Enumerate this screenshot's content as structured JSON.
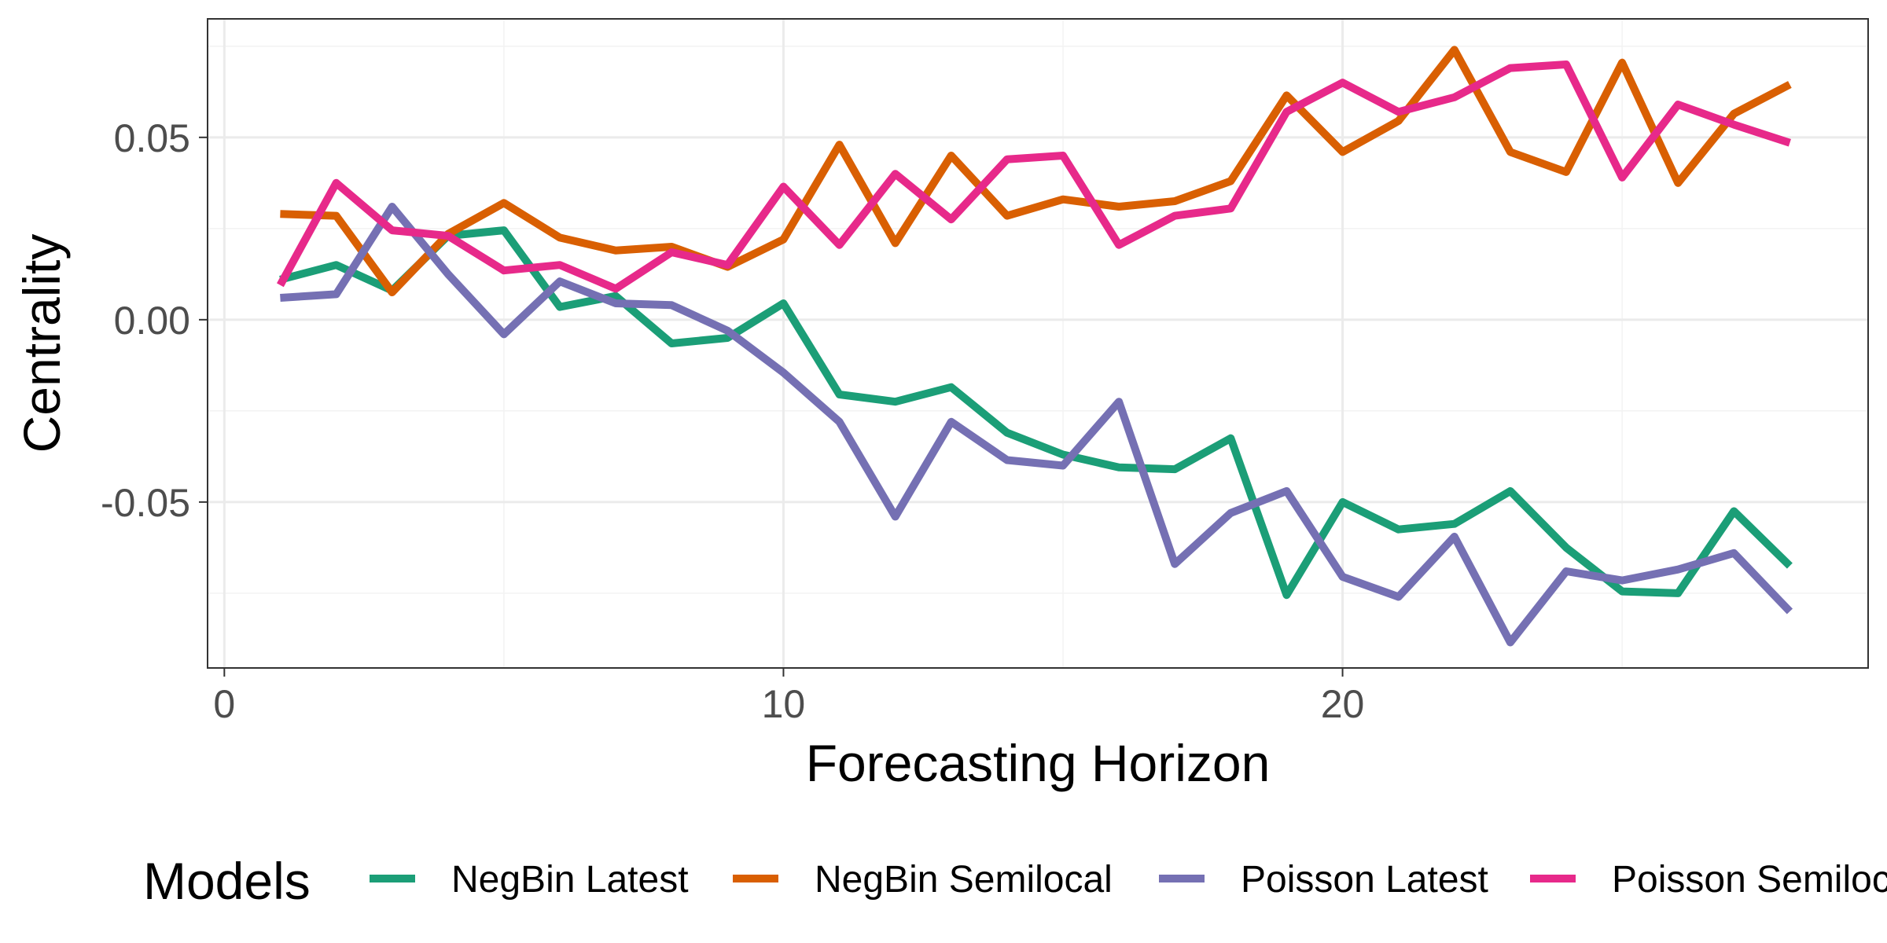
{
  "chart_data": {
    "type": "line",
    "title": "",
    "xlabel": "Forecasting Horizon",
    "ylabel": "Centrality",
    "xlim": [
      -0.3,
      29.4
    ],
    "ylim": [
      -0.0955,
      0.0825
    ],
    "x_ticks": [
      0,
      10,
      20
    ],
    "x_tick_labels": [
      "0",
      "10",
      "20"
    ],
    "y_ticks": [
      -0.05,
      0.0,
      0.05
    ],
    "y_tick_labels": [
      "-0.05",
      "0.00",
      "0.05"
    ],
    "grid": true,
    "legend": {
      "title": "Models",
      "placement": "bottom"
    },
    "x": [
      1,
      2,
      3,
      4,
      5,
      6,
      7,
      8,
      9,
      10,
      11,
      12,
      13,
      14,
      15,
      16,
      17,
      18,
      19,
      20,
      21,
      22,
      23,
      24,
      25,
      26,
      27,
      28
    ],
    "series": [
      {
        "name": "NegBin Latest",
        "color": "#1b9e77",
        "values": [
          0.011,
          0.015,
          0.008,
          0.023,
          0.0245,
          0.0035,
          0.0065,
          -0.0065,
          -0.005,
          0.0045,
          -0.0205,
          -0.0225,
          -0.0185,
          -0.031,
          -0.037,
          -0.0405,
          -0.041,
          -0.0325,
          -0.0755,
          -0.05,
          -0.0575,
          -0.056,
          -0.047,
          -0.0625,
          -0.0745,
          -0.075,
          -0.0525,
          -0.0675
        ]
      },
      {
        "name": "NegBin Semilocal",
        "color": "#d95f02",
        "values": [
          0.029,
          0.0285,
          0.0075,
          0.0235,
          0.032,
          0.0225,
          0.019,
          0.02,
          0.0145,
          0.022,
          0.048,
          0.021,
          0.045,
          0.0285,
          0.033,
          0.031,
          0.0325,
          0.038,
          0.0615,
          0.046,
          0.0545,
          0.074,
          0.046,
          0.0405,
          0.0705,
          0.0375,
          0.0565,
          0.0645
        ]
      },
      {
        "name": "Poisson Latest",
        "color": "#7570b3",
        "values": [
          0.006,
          0.007,
          0.031,
          0.0125,
          -0.004,
          0.0105,
          0.0045,
          0.004,
          -0.003,
          -0.0145,
          -0.028,
          -0.054,
          -0.028,
          -0.0385,
          -0.04,
          -0.0225,
          -0.067,
          -0.053,
          -0.047,
          -0.0705,
          -0.076,
          -0.0595,
          -0.0885,
          -0.069,
          -0.0715,
          -0.0685,
          -0.064,
          -0.08
        ]
      },
      {
        "name": "Poisson Semilocal",
        "color": "#e7298a",
        "values": [
          0.0095,
          0.0375,
          0.0245,
          0.023,
          0.0135,
          0.015,
          0.0085,
          0.0185,
          0.015,
          0.0365,
          0.0205,
          0.04,
          0.0275,
          0.044,
          0.045,
          0.0205,
          0.0285,
          0.0305,
          0.057,
          0.065,
          0.057,
          0.061,
          0.069,
          0.07,
          0.039,
          0.059,
          0.0535,
          0.0485
        ]
      }
    ]
  }
}
